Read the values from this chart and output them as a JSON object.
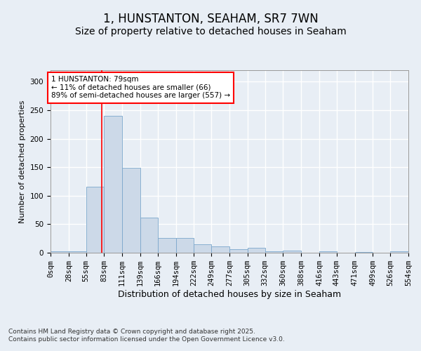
{
  "title": "1, HUNSTANTON, SEAHAM, SR7 7WN",
  "subtitle": "Size of property relative to detached houses in Seaham",
  "xlabel": "Distribution of detached houses by size in Seaham",
  "ylabel": "Number of detached properties",
  "footer_line1": "Contains HM Land Registry data © Crown copyright and database right 2025.",
  "footer_line2": "Contains public sector information licensed under the Open Government Licence v3.0.",
  "annotation_title": "1 HUNSTANTON: 79sqm",
  "annotation_line1": "← 11% of detached houses are smaller (66)",
  "annotation_line2": "89% of semi-detached houses are larger (557) →",
  "bar_color": "#ccd9e8",
  "bar_edge_color": "#7ba7cc",
  "red_line_x": 79,
  "bin_edges": [
    0,
    28,
    55,
    83,
    111,
    139,
    166,
    194,
    222,
    249,
    277,
    305,
    332,
    360,
    388,
    416,
    443,
    471,
    499,
    526,
    554
  ],
  "bar_values": [
    2,
    3,
    116,
    240,
    149,
    61,
    26,
    26,
    15,
    11,
    6,
    9,
    3,
    4,
    0,
    3,
    0,
    1,
    0,
    2
  ],
  "ylim": [
    0,
    320
  ],
  "yticks": [
    0,
    50,
    100,
    150,
    200,
    250,
    300
  ],
  "background_color": "#e8eef5",
  "plot_background": "#e8eef5",
  "grid_color": "#ffffff",
  "title_fontsize": 12,
  "subtitle_fontsize": 10,
  "xlabel_fontsize": 9,
  "ylabel_fontsize": 8,
  "tick_fontsize": 7.5,
  "footer_fontsize": 6.5,
  "ann_fontsize": 7.5
}
